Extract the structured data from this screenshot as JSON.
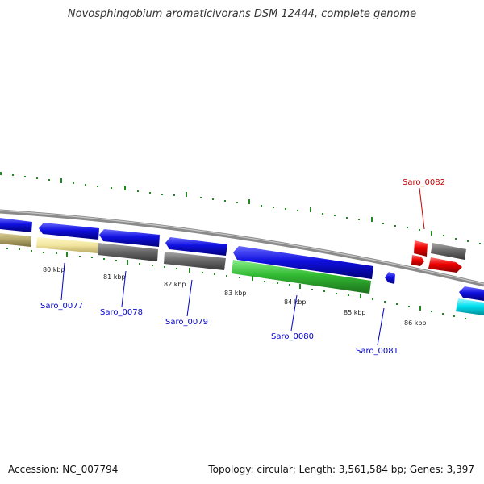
{
  "title": "Novosphingobium aromaticivorans DSM 12444, complete genome",
  "footer": {
    "accession": "Accession: NC_007794",
    "summary": "Topology: circular; Length: 3,561,584 bp; Genes: 3,397"
  },
  "scale": {
    "labels": [
      "80 kbp",
      "81 kbp",
      "82 kbp",
      "83 kbp",
      "84 kbp",
      "85 kbp",
      "86 kbp"
    ]
  },
  "genes": [
    {
      "id": "Saro_0077",
      "color": "#0000cc"
    },
    {
      "id": "Saro_0078",
      "color": "#0000cc"
    },
    {
      "id": "Saro_0079",
      "color": "#0000cc"
    },
    {
      "id": "Saro_0080",
      "color": "#0000cc"
    },
    {
      "id": "Saro_0081",
      "color": "#0000cc"
    },
    {
      "id": "Saro_0082",
      "color": "#cc0000"
    }
  ],
  "colors": {
    "cds": "#1010e0",
    "cds_highlight": "#ff0000",
    "khaki": "#b5a86a",
    "pale_yellow": "#f2e6a0",
    "gray": "#6b6b6b",
    "green": "#33bb33",
    "cyan": "#00e0f0",
    "tick": "#228822",
    "backbone": "#8a8a8a"
  }
}
